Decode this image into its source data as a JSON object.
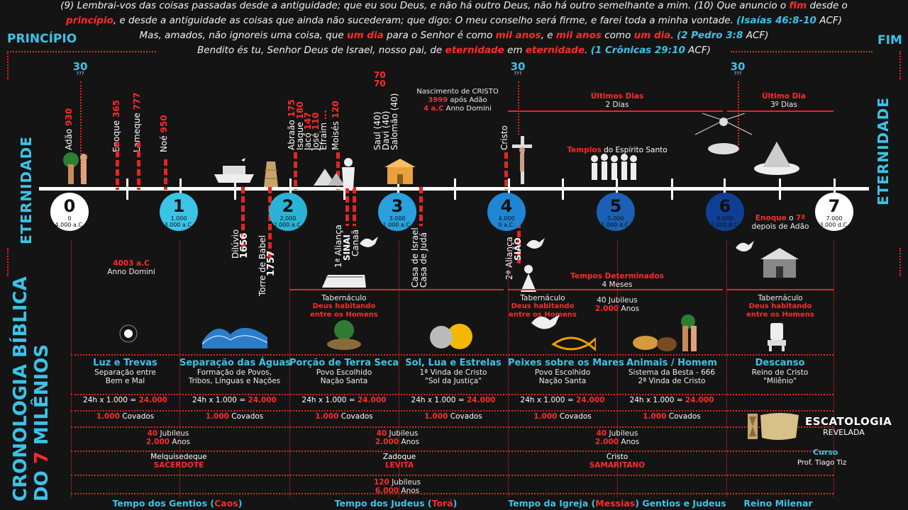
{
  "verses": [
    {
      "segments": [
        {
          "t": "(9) Lembrai-vos das coisas passadas desde a antiguidade; que eu sou Deus, e não há outro Deus, não há outro semelhante a mim. (10) Que anuncio o ",
          "s": ""
        },
        {
          "t": "fim",
          "s": "red"
        },
        {
          "t": " desde o",
          "s": ""
        }
      ]
    },
    {
      "segments": [
        {
          "t": "princípio",
          "s": "red"
        },
        {
          "t": ", e desde a antiguidade as coisas que ainda não sucederam; que digo: O meu conselho será firme, e farei toda a minha vontade. ",
          "s": ""
        },
        {
          "t": "(Isaías 46:8-10",
          "s": "blue"
        },
        {
          "t": " ACF)",
          "s": ""
        }
      ]
    },
    {
      "segments": [
        {
          "t": "Mas, amados, não ignoreis uma coisa, que ",
          "s": ""
        },
        {
          "t": "um dia",
          "s": "red"
        },
        {
          "t": " para o Senhor é como ",
          "s": ""
        },
        {
          "t": "mil anos",
          "s": "red"
        },
        {
          "t": ", e ",
          "s": ""
        },
        {
          "t": "mil anos",
          "s": "red"
        },
        {
          "t": " como ",
          "s": ""
        },
        {
          "t": "um dia",
          "s": "red"
        },
        {
          "t": ". ",
          "s": ""
        },
        {
          "t": "(2 Pedro 3:8",
          "s": "blue"
        },
        {
          "t": " ACF)",
          "s": ""
        }
      ]
    },
    {
      "segments": [
        {
          "t": "Bendito és tu, Senhor Deus de Israel, nosso pai, de ",
          "s": ""
        },
        {
          "t": "eternidade",
          "s": "red"
        },
        {
          "t": " em ",
          "s": ""
        },
        {
          "t": "eternidade",
          "s": "red"
        },
        {
          "t": ". ",
          "s": ""
        },
        {
          "t": "(1 Crônicas 29:10",
          "s": "blue"
        },
        {
          "t": " ACF)",
          "s": ""
        }
      ]
    }
  ],
  "header": {
    "left": "PRINCÍPIO",
    "right": "FIM",
    "eternity": "ETERNIDADE"
  },
  "side_title": {
    "line1a": "CRONOLOGIA BÍBLICA",
    "line2a": "DO ",
    "line2b": "7",
    "line2c": " MILÊNIOS"
  },
  "thirty": {
    "label": "30",
    "sub": "???"
  },
  "circles": [
    {
      "n": "0",
      "a": "0",
      "b": "4.000 a.C.",
      "color": "#ffffff",
      "text": "#111111"
    },
    {
      "n": "1",
      "a": "1.000",
      "b": "3.000 a.C.",
      "color": "#3cc3e8",
      "text": "#111111"
    },
    {
      "n": "2",
      "a": "2.000",
      "b": "2.000 a.C.",
      "color": "#2bb3d6",
      "text": "#111111"
    },
    {
      "n": "3",
      "a": "3.000",
      "b": "1.000 a.C.",
      "color": "#2aa0dc",
      "text": "#111111"
    },
    {
      "n": "4",
      "a": "4.000",
      "b": "0 a.C.",
      "color": "#1f86d6",
      "text": "#111111"
    },
    {
      "n": "5",
      "a": "5.000",
      "b": "1.000 d.C.",
      "color": "#1b60b5",
      "text": "#111111"
    },
    {
      "n": "6",
      "a": "6.000",
      "b": "2.000 d.C.",
      "color": "#0f3f94",
      "text": "#111111"
    },
    {
      "n": "7",
      "a": "7.000",
      "b": "3.000 d.C.",
      "color": "#ffffff",
      "text": "#111111"
    }
  ],
  "upper_people": [
    {
      "name": "Adão",
      "num": "930"
    },
    {
      "name": "Enoque",
      "num": "365"
    },
    {
      "name": "Lameque",
      "num": "777"
    },
    {
      "name": "Noé",
      "num": "950"
    },
    {
      "name": "Abraão",
      "num": "175"
    },
    {
      "name": "Isaque",
      "num": "180"
    },
    {
      "name": "Jacó",
      "num": "147"
    },
    {
      "name": "José",
      "num": "110"
    },
    {
      "name": "Efraim",
      "num": "..."
    },
    {
      "name": "Moisés",
      "num": "120"
    },
    {
      "name": "Saul",
      "num": "(40)"
    },
    {
      "name": "Davi",
      "num": "(40)"
    },
    {
      "name": "Salomão",
      "num": "(40)"
    },
    {
      "name": "Cristo",
      "num": ""
    }
  ],
  "kings_nums": [
    "70",
    "70"
  ],
  "birth": {
    "l1": "Nascimento de CRISTO",
    "l2a": "3999",
    "l2b": " após Adão",
    "l3a": "4 a.C",
    "l3b": " Anno Domini"
  },
  "temples": {
    "a": "Templos",
    "b": " do Espírito Santo"
  },
  "ultimos": {
    "t": "Últimos Dias",
    "s": "2 Dias"
  },
  "ultimo": {
    "t": "Último Dia",
    "s": "3º Dias"
  },
  "lower_events": [
    {
      "name": "Dilúvio",
      "num": "1656"
    },
    {
      "name": "Torre de Babel",
      "num": "1757"
    },
    {
      "name": "1ª Aliança",
      "num": "SINAI"
    },
    {
      "name": "Canaã",
      "num": ""
    },
    {
      "name": "Casa de Israel",
      "num": ""
    },
    {
      "name": "Casa de Judá",
      "num": ""
    },
    {
      "name": "2ª Aliança",
      "num": "SIÃO"
    }
  ],
  "anno": {
    "a": "4003 a.C",
    "b": "Anno Domini"
  },
  "enoque7": {
    "a": "Enoque",
    "b": " o ",
    "c": "7ª",
    "d": "depois de Adão"
  },
  "tabernacle": {
    "t": "Tabernáculo",
    "s": "Deus habitando entre os Homens"
  },
  "tempos_det": {
    "t": "Tempos Determinados",
    "s": "4 Meses"
  },
  "jub40b": {
    "a": "40",
    "b": " Jubileus",
    "c": "2.000",
    "d": " Anos"
  },
  "days": [
    {
      "name": "Luz e Trevas",
      "desc1": "Separação entre",
      "desc2": "Bem e Mal"
    },
    {
      "name": "Separação das Águas",
      "desc1": "Formação de Povos,",
      "desc2": "Tribos, Línguas e Nações"
    },
    {
      "name": "Porção de Terra Seca",
      "desc1": "Povo Escolhido",
      "desc2": "Nação Santa"
    },
    {
      "name": "Sol, Lua e Estrelas",
      "desc1": "1ª Vinda de Cristo",
      "desc2": "\"Sol da Justiça\""
    },
    {
      "name": "Peixes sobre os Mares",
      "desc1": "Povo Escolhido",
      "desc2": "Nação Santa"
    },
    {
      "name": "Animais / Homem",
      "desc1": "Sistema da Besta - 666",
      "desc2": "2ª Vinda de Cristo"
    },
    {
      "name": "Descanso",
      "desc1": "Reino de Cristo",
      "desc2": "\"Milênio\""
    }
  ],
  "rows": {
    "hours_a": "24h x 1.000 = ",
    "hours_b": "24.000",
    "cov_a": "1.000",
    "cov_b": " Covados"
  },
  "jubileus": {
    "a": "40",
    "b": " Jubileus",
    "c": "2.000",
    "d": " Anos"
  },
  "priests": [
    {
      "name": "Melquisedeque",
      "role": "SACERDOTE"
    },
    {
      "name": "Zadoque",
      "role": "LEVITA"
    },
    {
      "name": "Cristo",
      "role": "SAMARITANO"
    }
  ],
  "total": {
    "a": "120",
    "b": " Jubileus",
    "c": "6.000",
    "d": " Anos"
  },
  "footer": [
    {
      "a": "Tempo dos Gentios (",
      "b": "Caos",
      "c": ")"
    },
    {
      "a": "Tempo dos Judeus (",
      "b": "Torá",
      "c": ")"
    },
    {
      "a": "Tempo da Igreja (",
      "b": "Messias",
      "c": ") Gentios e Judeus"
    },
    {
      "a": "Reino Milenar",
      "b": "",
      "c": ""
    }
  ],
  "brand": {
    "name": "ESCATOLOGIA",
    "sub": "REVELADA",
    "curso": "Curso",
    "prof": "Prof. Tiago Tiz"
  },
  "colors": {
    "accent": "#3cc3e8",
    "red": "#e82323",
    "bg": "#141414"
  }
}
